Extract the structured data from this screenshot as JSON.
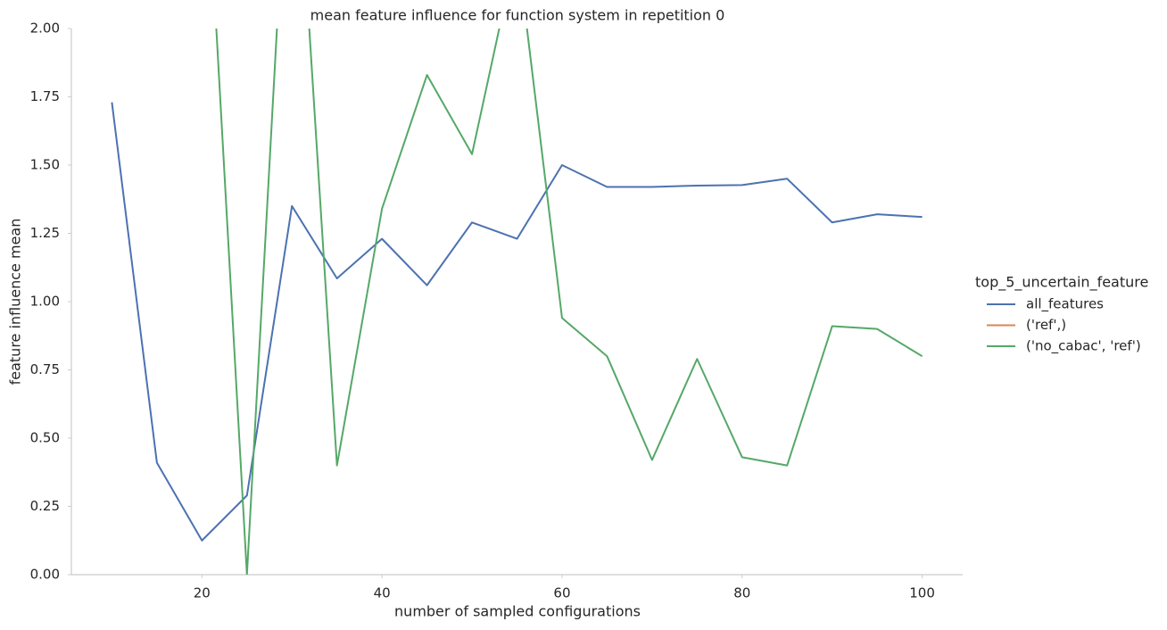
{
  "chart_data": {
    "type": "line",
    "title": "mean feature influence for function system in repetition 0",
    "x_label": "number of sampled configurations",
    "y_label": "feature influence mean",
    "legend_title": "top_5_uncertain_feature",
    "legend_position": "right",
    "grid": false,
    "x": [
      10,
      15,
      20,
      25,
      30,
      35,
      40,
      45,
      50,
      55,
      60,
      65,
      70,
      75,
      80,
      85,
      90,
      95,
      100
    ],
    "series": [
      {
        "name": "all_features",
        "color": "#4c72b0",
        "values": [
          1.73,
          0.41,
          0.125,
          0.29,
          1.35,
          1.085,
          1.23,
          1.06,
          1.29,
          1.23,
          1.5,
          1.42,
          1.42,
          1.425,
          1.427,
          1.45,
          1.29,
          1.32,
          1.31
        ]
      },
      {
        "name": "('ref',)",
        "color": "#dd8452",
        "values": [
          null,
          null,
          null,
          null,
          null,
          null,
          null,
          null,
          null,
          null,
          null,
          null,
          null,
          null,
          null,
          null,
          null,
          null,
          null
        ]
      },
      {
        "name": "('no_cabac', 'ref')",
        "color": "#55a868",
        "values": [
          null,
          null,
          2.94,
          0.0,
          3.0,
          0.4,
          1.34,
          1.83,
          1.54,
          2.3,
          0.94,
          0.8,
          0.42,
          0.79,
          0.43,
          0.4,
          0.91,
          0.9,
          0.8
        ]
      }
    ],
    "xlim": [
      5.5,
      104.5
    ],
    "xticks": [
      20,
      40,
      60,
      80,
      100
    ],
    "ylim": [
      0,
      2
    ],
    "yticks": [
      {
        "value": 0,
        "label": "0.00"
      },
      {
        "value": 0.25,
        "label": "0.25"
      },
      {
        "value": 0.5,
        "label": "0.50"
      },
      {
        "value": 0.75,
        "label": "0.75"
      },
      {
        "value": 1,
        "label": "1.00"
      },
      {
        "value": 1.25,
        "label": "1.25"
      },
      {
        "value": 1.5,
        "label": "1.50"
      },
      {
        "value": 1.75,
        "label": "1.75"
      },
      {
        "value": 2,
        "label": "2.00"
      }
    ]
  }
}
